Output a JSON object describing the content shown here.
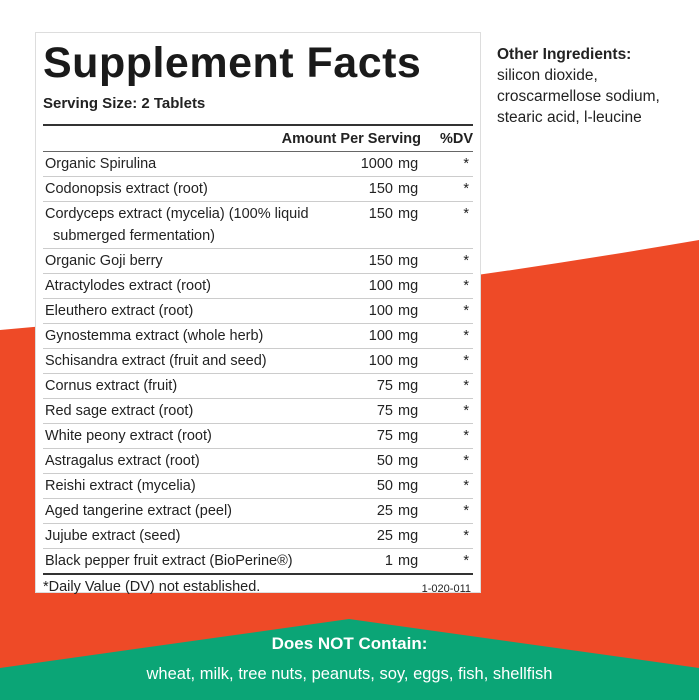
{
  "colors": {
    "accent_red": "#ee4a27",
    "accent_green": "#0ba576"
  },
  "panel": {
    "title": "Supplement Facts",
    "serving_size": "Serving Size: 2 Tablets",
    "header": {
      "amount": "Amount Per Serving",
      "dv": "%DV"
    },
    "rows": [
      {
        "name": "Organic Spirulina",
        "amount": "1000",
        "unit": "mg",
        "dv": "*"
      },
      {
        "name": "Codonopsis extract (root)",
        "amount": "150",
        "unit": "mg",
        "dv": "*"
      },
      {
        "name": "Cordyceps extract (mycelia) (100% liquid",
        "name2": "submerged fermentation)",
        "amount": "150",
        "unit": "mg",
        "dv": "*"
      },
      {
        "name": "Organic Goji berry",
        "amount": "150",
        "unit": "mg",
        "dv": "*"
      },
      {
        "name": "Atractylodes extract (root)",
        "amount": "100",
        "unit": "mg",
        "dv": "*"
      },
      {
        "name": "Eleuthero extract (root)",
        "amount": "100",
        "unit": "mg",
        "dv": "*"
      },
      {
        "name": "Gynostemma extract (whole herb)",
        "amount": "100",
        "unit": "mg",
        "dv": "*"
      },
      {
        "name": "Schisandra extract (fruit and seed)",
        "amount": "100",
        "unit": "mg",
        "dv": "*"
      },
      {
        "name": "Cornus extract (fruit)",
        "amount": "75",
        "unit": "mg",
        "dv": "*"
      },
      {
        "name": "Red sage extract (root)",
        "amount": "75",
        "unit": "mg",
        "dv": "*"
      },
      {
        "name": "White peony extract (root)",
        "amount": "75",
        "unit": "mg",
        "dv": "*"
      },
      {
        "name": "Astragalus extract (root)",
        "amount": "50",
        "unit": "mg",
        "dv": "*"
      },
      {
        "name": "Reishi extract (mycelia)",
        "amount": "50",
        "unit": "mg",
        "dv": "*"
      },
      {
        "name": "Aged tangerine extract (peel)",
        "amount": "25",
        "unit": "mg",
        "dv": "*"
      },
      {
        "name": "Jujube extract (seed)",
        "amount": "25",
        "unit": "mg",
        "dv": "*"
      },
      {
        "name": "Black pepper fruit extract (BioPerine®)",
        "amount": "1",
        "unit": "mg",
        "dv": "*"
      }
    ],
    "footnote": "*Daily Value (DV) not established.",
    "code": "1-020-011"
  },
  "other_ingredients": {
    "heading": "Other Ingredients:",
    "lines": [
      "silicon dioxide,",
      "croscarmellose sodium,",
      "stearic acid, l-leucine"
    ]
  },
  "does_not_contain": {
    "heading": "Does NOT Contain:",
    "list": "wheat, milk, tree nuts, peanuts, soy, eggs, fish, shellfish"
  }
}
